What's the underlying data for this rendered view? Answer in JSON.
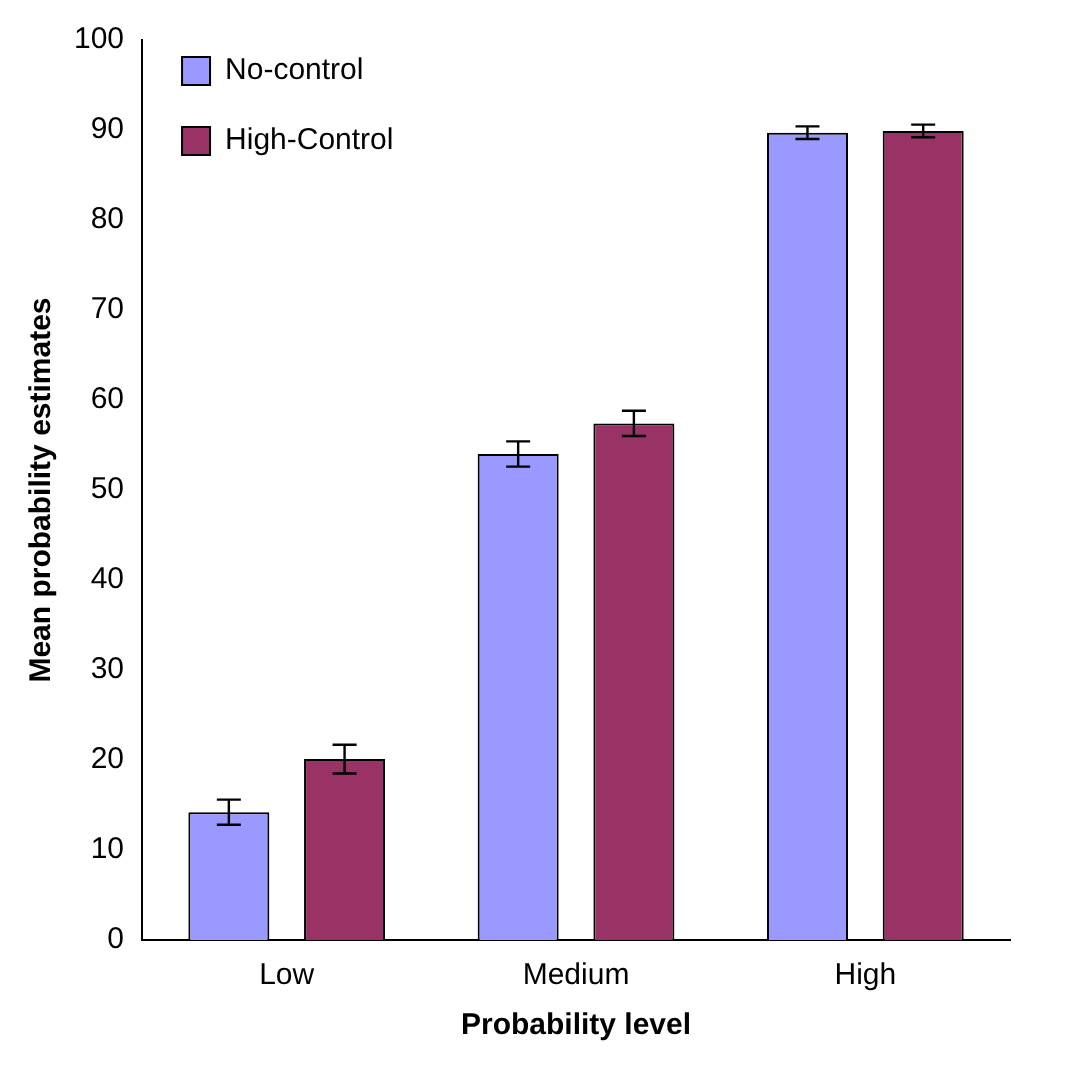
{
  "chart_data": {
    "type": "bar",
    "xlabel": "Probability level",
    "ylabel": "Mean probability estimates",
    "categories": [
      "Low",
      "Medium",
      "High"
    ],
    "series": [
      {
        "name": "No-control",
        "color": "#9999ff",
        "values": [
          14.2,
          54,
          89.7
        ],
        "errors": [
          1.4,
          1.4,
          0.7
        ]
      },
      {
        "name": "High-Control",
        "color": "#993366",
        "values": [
          20.1,
          57.4,
          89.9
        ],
        "errors": [
          1.6,
          1.4,
          0.7
        ]
      }
    ],
    "ylim": [
      0,
      100
    ],
    "yticks": [
      0,
      10,
      20,
      30,
      40,
      50,
      60,
      70,
      80,
      90,
      100
    ],
    "grid": false,
    "legend": "top left"
  }
}
